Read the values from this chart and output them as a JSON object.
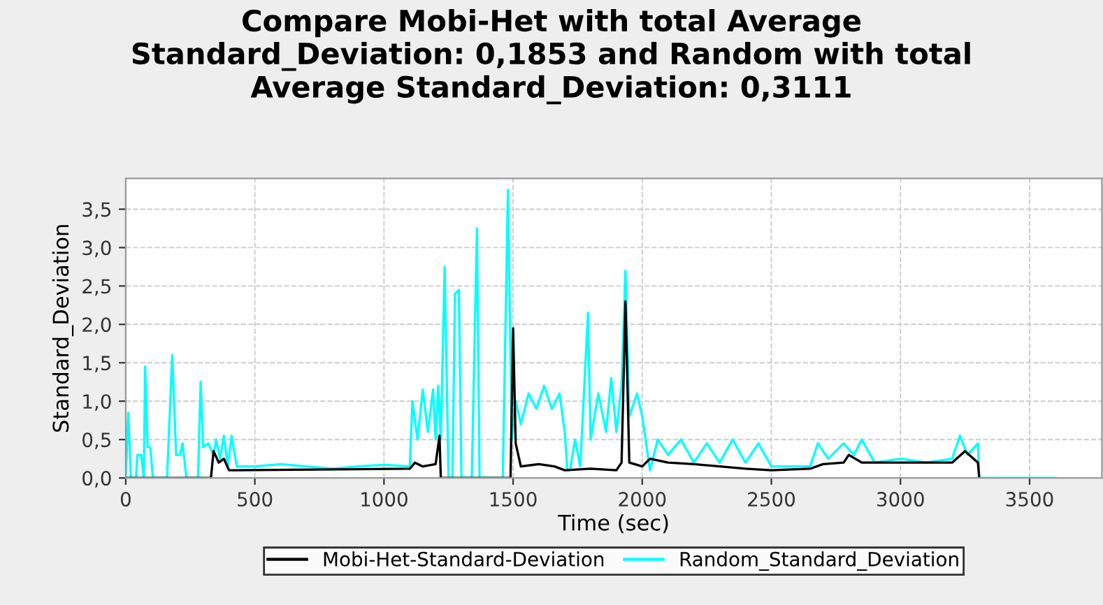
{
  "chart_data": {
    "type": "line",
    "title": "Compare Mobi-Het with total Average\nStandard_Deviation: 0,1853 and Random with total\nAverage Standard_Deviation: 0,3111",
    "xlabel": "Time (sec)",
    "ylabel": "Standard_Deviation",
    "xlim": [
      0,
      3780
    ],
    "xticks": [
      0,
      500,
      1000,
      1500,
      2000,
      2500,
      3000,
      3500
    ],
    "ylim": [
      0,
      3.9
    ],
    "yticks": [
      {
        "value": 0,
        "label": "0,0"
      },
      {
        "value": 0.5,
        "label": "0,5"
      },
      {
        "value": 1,
        "label": "1,0"
      },
      {
        "value": 1.5,
        "label": "1,5"
      },
      {
        "value": 2,
        "label": "2,0"
      },
      {
        "value": 2.5,
        "label": "2,5"
      },
      {
        "value": 3,
        "label": "3,0"
      },
      {
        "value": 3.5,
        "label": "3,5"
      }
    ],
    "grid": true,
    "legend": "bottom",
    "marker": "none",
    "line_style": "solid",
    "series": [
      {
        "name": "Random_Standard_Deviation",
        "color": "#00ffff",
        "x": [
          0,
          10,
          20,
          40,
          45,
          60,
          70,
          75,
          85,
          95,
          105,
          160,
          180,
          195,
          210,
          220,
          235,
          280,
          290,
          300,
          320,
          340,
          350,
          365,
          380,
          395,
          410,
          430,
          500,
          600,
          700,
          800,
          900,
          1000,
          1100,
          1110,
          1130,
          1150,
          1170,
          1190,
          1200,
          1210,
          1220,
          1235,
          1250,
          1265,
          1275,
          1290,
          1300,
          1340,
          1360,
          1370,
          1460,
          1480,
          1495,
          1510,
          1530,
          1560,
          1590,
          1620,
          1650,
          1680,
          1700,
          1710,
          1720,
          1740,
          1760,
          1790,
          1800,
          1830,
          1860,
          1880,
          1900,
          1920,
          1935,
          1950,
          1980,
          2000,
          2030,
          2060,
          2100,
          2150,
          2200,
          2250,
          2300,
          2350,
          2400,
          2450,
          2500,
          2550,
          2600,
          2650,
          2680,
          2720,
          2780,
          2820,
          2850,
          2900,
          3000,
          3100,
          3200,
          3230,
          3260,
          3300,
          3305,
          3600
        ],
        "values": [
          0,
          0.85,
          0,
          0,
          0.3,
          0.3,
          0,
          1.45,
          0.4,
          0.4,
          0,
          0,
          1.6,
          0.3,
          0.3,
          0.45,
          0,
          0,
          1.25,
          0.4,
          0.45,
          0.3,
          0.5,
          0.25,
          0.55,
          0.15,
          0.55,
          0.15,
          0.15,
          0.18,
          0.15,
          0.12,
          0.15,
          0.17,
          0.15,
          1.0,
          0.5,
          1.15,
          0.6,
          1.15,
          0.5,
          1.2,
          0.5,
          2.75,
          0,
          0,
          2.4,
          2.45,
          0,
          0,
          3.25,
          0,
          0,
          3.75,
          0.5,
          1.0,
          0.7,
          1.1,
          0.9,
          1.2,
          0.9,
          1.1,
          0.6,
          0.1,
          0.1,
          0.5,
          0.15,
          2.15,
          0.5,
          1.1,
          0.6,
          1.3,
          0.6,
          1.2,
          2.7,
          0.8,
          1.1,
          0.8,
          0.1,
          0.5,
          0.3,
          0.5,
          0.2,
          0.45,
          0.2,
          0.5,
          0.2,
          0.45,
          0.15,
          0.15,
          0.15,
          0.15,
          0.45,
          0.25,
          0.45,
          0.3,
          0.5,
          0.2,
          0.25,
          0.2,
          0.25,
          0.55,
          0.3,
          0.45,
          0,
          0
        ]
      },
      {
        "name": "Mobi-Het-Standard-Deviation",
        "color": "#000000",
        "x": [
          0,
          330,
          340,
          360,
          380,
          400,
          420,
          1100,
          1120,
          1150,
          1200,
          1215,
          1220,
          1490,
          1500,
          1510,
          1530,
          1600,
          1660,
          1700,
          1800,
          1900,
          1920,
          1935,
          1950,
          2000,
          2030,
          2100,
          2200,
          2300,
          2400,
          2500,
          2650,
          2700,
          2780,
          2800,
          2850,
          3000,
          3200,
          3250,
          3300,
          3305
        ],
        "values": [
          0,
          0,
          0.35,
          0.2,
          0.25,
          0.1,
          0.1,
          0.12,
          0.2,
          0.15,
          0.18,
          0.55,
          0,
          0,
          1.95,
          0.45,
          0.15,
          0.18,
          0.15,
          0.1,
          0.12,
          0.1,
          0.2,
          2.3,
          0.2,
          0.15,
          0.25,
          0.2,
          0.18,
          0.15,
          0.12,
          0.1,
          0.12,
          0.18,
          0.2,
          0.3,
          0.2,
          0.2,
          0.2,
          0.35,
          0.2,
          0
        ]
      }
    ]
  }
}
